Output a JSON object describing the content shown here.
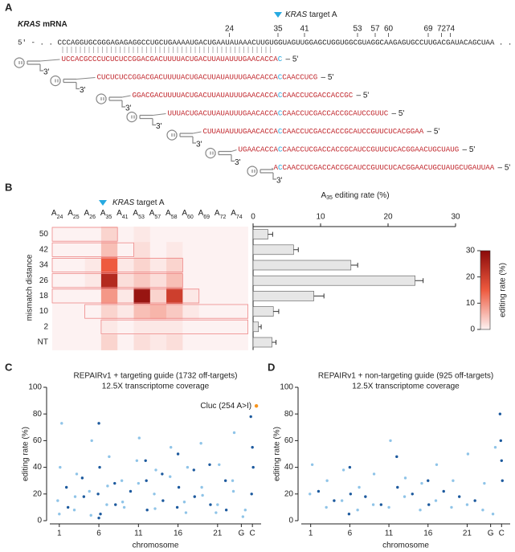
{
  "panel_a": {
    "label": "A",
    "title_gene": "KRAS",
    "title_rest": "mRNA",
    "target_gene": "KRAS",
    "target_text": "target A",
    "sequence": "5' - . . CCCAGGUGCGGGAGAGAGGCCUGCUGAAAAUGACUGAAUAUAAACUUGUGGUAGUUGGAGCUGGUGGCGUAGGCAAGAGUGCCUUGACGAUACAGCUAA . . - 3'",
    "positions": [
      24,
      35,
      41,
      53,
      57,
      60,
      69,
      72,
      74
    ],
    "guide_end": "– 5'",
    "hairpin_end": "3'",
    "guides": [
      {
        "pre": "UCCACGCCCUCUCUCCGGACGACUUUUACUGACUUAUAUUUGAACACCA",
        "mismatch": "C",
        "post": ""
      },
      {
        "pre": "CUCUCUCCGGACGACUUUUACUGACUUAUAUUUGAACACCA",
        "mismatch": "C",
        "post": "CAACCUCG"
      },
      {
        "pre": "GGACGACUUUUACUGACUUAUAUUUGAACACCA",
        "mismatch": "C",
        "post": "CAACCUCGACCACCGC"
      },
      {
        "pre": "UUUACUGACUUAUAUUUGAACACCA",
        "mismatch": "C",
        "post": "CAACCUCGACCACCGCAUCCGUUC"
      },
      {
        "pre": "CUUAUAUUUGAACACCA",
        "mismatch": "C",
        "post": "CAACCUCGACCACCGCAUCCGUUCUCACGGAA"
      },
      {
        "pre": "UGAACACCA",
        "mismatch": "C",
        "post": "CAACCUCGACCACCGCAUCCGUUCUCACGGAACUGCUAUG"
      },
      {
        "pre": "A",
        "mismatch": "C",
        "post": "CAACCUCGACCACCGCAUCCGUUCUCACGGAACUGCUAUGCUGAUUAA"
      }
    ]
  },
  "chart_data": [
    {
      "type": "heatmap",
      "panel_label": "B",
      "x_prefix": "A",
      "x_categories": [
        24,
        25,
        26,
        35,
        41,
        53,
        57,
        58,
        60,
        69,
        72,
        74
      ],
      "y_categories": [
        "50",
        "42",
        "34",
        "26",
        "18",
        "10",
        "2",
        "NT"
      ],
      "ylabel": "mismatch distance",
      "marker_gene": "KRAS",
      "marker_text": "target A",
      "values": [
        [
          0,
          0,
          0,
          3,
          0,
          1,
          0,
          0,
          0,
          0,
          0,
          0
        ],
        [
          0,
          0,
          0,
          5,
          0,
          2,
          0,
          1,
          0,
          0,
          0,
          0
        ],
        [
          0,
          0,
          1,
          15,
          1,
          3,
          1,
          3,
          0,
          0,
          0,
          0
        ],
        [
          0,
          0,
          1,
          24,
          2,
          4,
          2,
          5,
          0,
          0,
          0,
          0
        ],
        [
          0,
          0,
          0,
          9,
          1,
          28,
          3,
          20,
          1,
          0,
          0,
          0
        ],
        [
          0,
          0,
          0,
          3,
          1,
          5,
          6,
          4,
          1,
          0,
          0,
          0
        ],
        [
          0,
          0,
          0,
          1,
          0,
          1,
          1,
          1,
          0,
          0,
          0,
          0
        ],
        [
          0,
          0,
          0,
          3,
          0,
          2,
          1,
          2,
          0,
          0,
          0,
          0
        ]
      ],
      "colors": [
        "#fdf2f2",
        "#ee5a3f",
        "#8b0a0a"
      ],
      "colorbar": {
        "label": "editing rate (%)",
        "lim": [
          0,
          30
        ],
        "ticks": [
          0,
          10,
          20,
          30
        ]
      }
    },
    {
      "type": "bar",
      "orientation": "horizontal",
      "title_base": "A",
      "title_sub": "35",
      "title_rest": " editing rate (%)",
      "values": [
        2.2,
        6,
        14.5,
        24,
        9,
        3,
        0.8,
        2.8
      ],
      "errors": [
        0.7,
        0.7,
        1,
        1.2,
        1.5,
        0.8,
        0.4,
        0.6
      ],
      "color": "#e6e6e6",
      "xlim": [
        0,
        30
      ],
      "xticks": [
        0,
        10,
        20,
        30
      ]
    },
    {
      "type": "scatter",
      "panel_label": "C",
      "title": "REPAIRv1 + targeting guide (1732 off-targets)",
      "subtitle": "12.5X transcriptome coverage",
      "ylabel": "editing rate (%)",
      "xlabel": "chromosome",
      "xlim": [
        -0.2,
        26.5
      ],
      "ylim": [
        0,
        100
      ],
      "yticks": [
        0,
        20,
        40,
        60,
        80,
        100
      ],
      "xticks": [
        1,
        6,
        11,
        16,
        21,
        {
          "value": 24,
          "label": "G"
        },
        {
          "value": 25.4,
          "label": "C"
        }
      ],
      "series": [
        {
          "color": "#8fc4e8",
          "x": [
            0.8,
            1.1,
            1.3,
            2.9,
            3.2,
            4.8,
            5.1,
            7.0,
            7.3,
            8.9,
            9.2,
            10.8,
            11.1,
            13.0,
            13.2,
            15.1,
            16.8,
            17.2,
            19.0,
            18.9,
            20.8,
            21.2,
            22.9,
            23.1,
            24.2,
            24.5,
            1.0,
            3.0,
            5.0,
            7.1,
            9.0,
            11.0,
            13.1,
            15.0,
            17.0,
            19.1,
            21.0,
            23.0
          ],
          "values": [
            15,
            40,
            73,
            8,
            35,
            22,
            60,
            12,
            48,
            30,
            10,
            45,
            62,
            20,
            38,
            55,
            14,
            40,
            25,
            58,
            6,
            42,
            30,
            66,
            3,
            8,
            5,
            18,
            4,
            26,
            14,
            28,
            9,
            33,
            6,
            19,
            12,
            22
          ]
        },
        {
          "color": "#1d5a9e",
          "x": [
            1.9,
            2.1,
            3.9,
            4.1,
            6.0,
            6.1,
            5.9,
            6.2,
            8.0,
            8.1,
            10.0,
            11.9,
            12.0,
            12.1,
            14.0,
            14.1,
            16.0,
            16.1,
            15.9,
            18.0,
            18.1,
            20.0,
            20.1,
            22.0,
            22.1,
            25.2,
            25.4,
            25.5,
            25.3,
            6.0
          ],
          "values": [
            25,
            10,
            32,
            18,
            73,
            40,
            20,
            5,
            28,
            12,
            22,
            45,
            30,
            8,
            35,
            15,
            50,
            25,
            10,
            38,
            18,
            42,
            12,
            30,
            8,
            78,
            55,
            40,
            20,
            2
          ]
        }
      ],
      "annotation": {
        "text": "Cluc (254 A>I)",
        "x": 25.9,
        "y": 86,
        "color": "#f7941d"
      }
    },
    {
      "type": "scatter",
      "panel_label": "D",
      "title": "REPAIRv1 + non-targeting guide (925 off-targets)",
      "subtitle": "12.5X transcriptome coverage",
      "ylabel": "editing rate (%)",
      "xlabel": "chromosome",
      "xlim": [
        -0.2,
        26.5
      ],
      "ylim": [
        0,
        100
      ],
      "yticks": [
        0,
        20,
        40,
        60,
        80,
        100
      ],
      "xticks": [
        1,
        6,
        11,
        16,
        21,
        {
          "value": 24,
          "label": "G"
        },
        {
          "value": 25.4,
          "label": "C"
        }
      ],
      "series": [
        {
          "color": "#8fc4e8",
          "x": [
            0.9,
            1.2,
            3.0,
            3.1,
            5.0,
            5.2,
            7.0,
            7.2,
            9.0,
            9.1,
            11.0,
            11.2,
            13.0,
            13.1,
            15.0,
            15.2,
            17.0,
            17.1,
            19.0,
            19.2,
            21.0,
            21.1,
            23.0,
            23.2,
            24.3,
            24.6
          ],
          "values": [
            20,
            42,
            10,
            30,
            15,
            38,
            8,
            25,
            12,
            35,
            10,
            60,
            18,
            32,
            8,
            28,
            15,
            42,
            10,
            30,
            12,
            50,
            8,
            28,
            5,
            55
          ]
        },
        {
          "color": "#1d5a9e",
          "x": [
            2.0,
            4.0,
            6.0,
            6.1,
            5.9,
            8.0,
            10.0,
            12.0,
            12.1,
            14.0,
            16.0,
            16.1,
            18.0,
            20.0,
            22.0,
            25.2,
            25.3,
            25.4,
            25.5
          ],
          "values": [
            22,
            15,
            40,
            20,
            5,
            18,
            12,
            48,
            25,
            20,
            30,
            12,
            22,
            18,
            15,
            80,
            60,
            45,
            30
          ]
        }
      ]
    }
  ]
}
